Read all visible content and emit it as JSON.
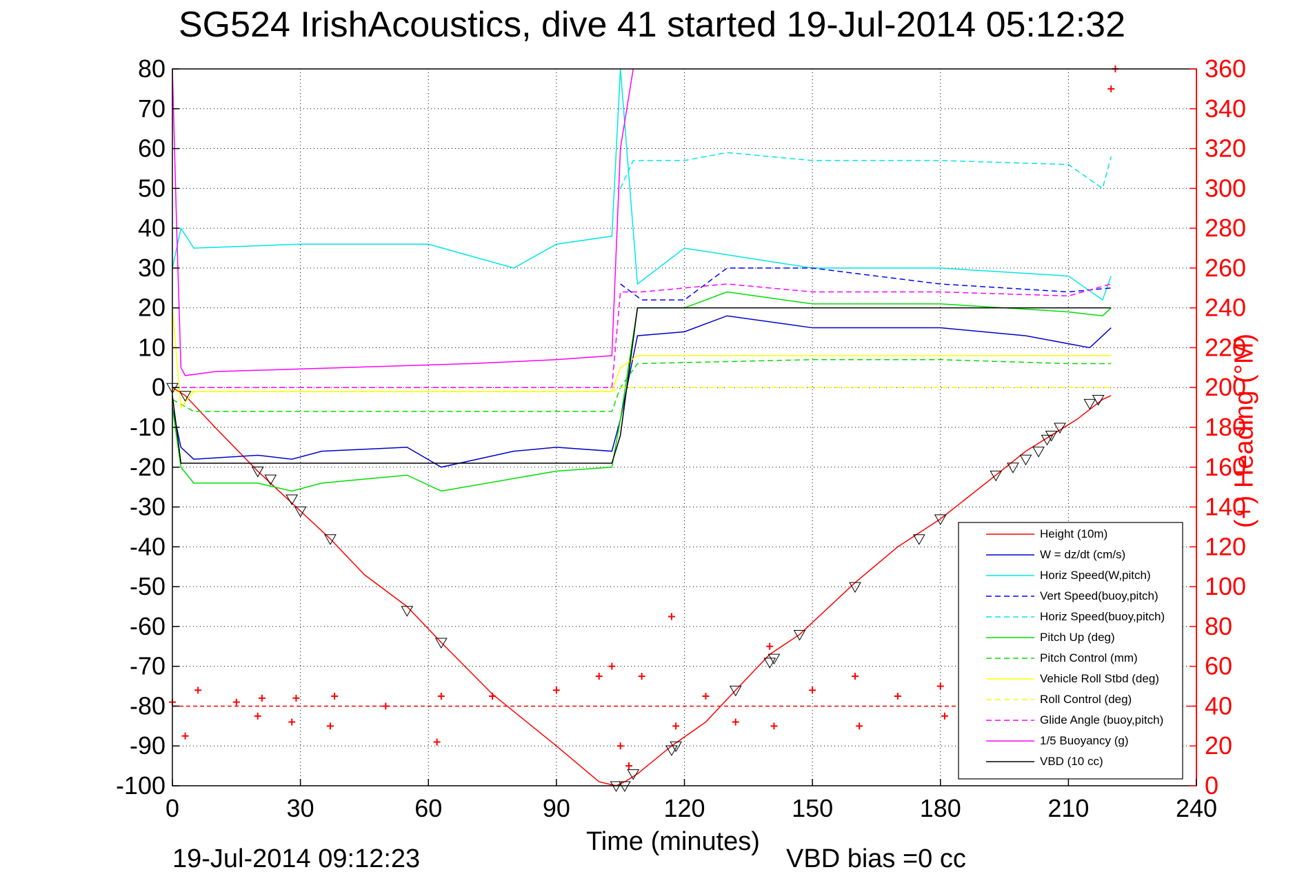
{
  "title": "SG524 IrishAcoustics, dive 41 started 19-Jul-2014 05:12:32",
  "footer": {
    "end_time": "19-Jul-2014 09:12:23",
    "vbd_bias": "VBD bias =0 cc"
  },
  "colors": {
    "height": "#ff0000",
    "w": "#0000cc",
    "horiz_speed": "#00e5e5",
    "pitch": "#00dd00",
    "roll": "#ffff00",
    "glide": "#ff00ff",
    "buoyancy": "#ff00ff",
    "vbd": "#000000",
    "heading": "#ff0000",
    "axes": "#000000"
  },
  "chart_data": {
    "type": "line",
    "title": "SG524 IrishAcoustics, dive 41 started 19-Jul-2014 05:12:32",
    "xlabel": "Time (minutes)",
    "ylabel": "",
    "y2label": "(+) Heading (°M)",
    "xlim": [
      0,
      240
    ],
    "ylim": [
      -100,
      80
    ],
    "y2lim": [
      0,
      360
    ],
    "xticks": [
      0,
      30,
      60,
      90,
      120,
      150,
      180,
      210,
      240
    ],
    "yticks": [
      80,
      70,
      60,
      50,
      40,
      30,
      20,
      10,
      0,
      -10,
      -20,
      -30,
      -40,
      -50,
      -60,
      -70,
      -80,
      -90,
      -100
    ],
    "y2ticks": [
      360,
      340,
      320,
      300,
      280,
      260,
      240,
      220,
      200,
      180,
      160,
      140,
      120,
      100,
      80,
      60,
      40,
      20,
      0
    ],
    "grid": true,
    "legend_position": "bottom-right",
    "series": [
      {
        "name": "Height (10m)",
        "color": "#ff0000",
        "style": "solid",
        "x": [
          0,
          3,
          10,
          20,
          28,
          37,
          45,
          55,
          63,
          75,
          90,
          100,
          104,
          106,
          109,
          117,
          125,
          132,
          140,
          147,
          160,
          170,
          180,
          193,
          200,
          206,
          212,
          218,
          220
        ],
        "y": [
          0,
          -2,
          -10,
          -21,
          -29,
          -38,
          -47,
          -55,
          -64,
          -77,
          -90,
          -99,
          -100,
          -99,
          -97,
          -90,
          -84,
          -76,
          -67,
          -62,
          -49,
          -40,
          -33,
          -22,
          -16,
          -12,
          -8,
          -3,
          -2
        ]
      },
      {
        "name": "W = dz/dt (cm/s)",
        "color": "#0000cc",
        "style": "solid",
        "x": [
          0,
          2,
          5,
          20,
          28,
          35,
          55,
          63,
          80,
          90,
          103,
          105,
          109,
          120,
          130,
          150,
          180,
          200,
          215,
          220
        ],
        "y": [
          -5,
          -15,
          -18,
          -17,
          -18,
          -16,
          -15,
          -20,
          -16,
          -15,
          -16,
          -8,
          13,
          14,
          18,
          15,
          15,
          13,
          10,
          15
        ]
      },
      {
        "name": "Horiz Speed(W,pitch)",
        "color": "#00e5e5",
        "style": "solid",
        "x": [
          0,
          2,
          5,
          30,
          60,
          80,
          90,
          103,
          105,
          109,
          120,
          150,
          180,
          210,
          218,
          220
        ],
        "y": [
          30,
          40,
          35,
          36,
          36,
          30,
          36,
          38,
          80,
          26,
          35,
          30,
          30,
          28,
          22,
          28
        ]
      },
      {
        "name": "Vert Speed(buoy,pitch)",
        "color": "#0000ff",
        "style": "dashed",
        "x": [
          105,
          110,
          120,
          130,
          150,
          180,
          210,
          220
        ],
        "y": [
          26,
          22,
          22,
          30,
          30,
          26,
          24,
          25
        ]
      },
      {
        "name": "Horiz Speed(buoy,pitch)",
        "color": "#00e5e5",
        "style": "dashed",
        "x": [
          105,
          108,
          120,
          130,
          150,
          180,
          210,
          218,
          220
        ],
        "y": [
          50,
          57,
          57,
          59,
          57,
          57,
          56,
          50,
          58
        ]
      },
      {
        "name": "Pitch Up (deg)",
        "color": "#00dd00",
        "style": "solid",
        "x": [
          0,
          2,
          5,
          20,
          28,
          35,
          55,
          63,
          90,
          103,
          105,
          109,
          120,
          130,
          150,
          180,
          210,
          218,
          220
        ],
        "y": [
          -5,
          -20,
          -24,
          -24,
          -26,
          -24,
          -22,
          -26,
          -21,
          -20,
          -8,
          20,
          20,
          24,
          21,
          21,
          19,
          18,
          20
        ]
      },
      {
        "name": "Pitch Control (mm)",
        "color": "#00dd00",
        "style": "dashed",
        "x": [
          0,
          5,
          20,
          40,
          60,
          90,
          103,
          105,
          109,
          150,
          180,
          210,
          220
        ],
        "y": [
          -3,
          -6,
          -6,
          -6,
          -6,
          -6,
          -6,
          0,
          6,
          7,
          7,
          6,
          6
        ]
      },
      {
        "name": "Vehicle Roll Stbd (deg)",
        "color": "#ffff00",
        "style": "solid",
        "x": [
          0,
          2,
          5,
          30,
          60,
          90,
          103,
          105,
          109,
          150,
          180,
          210,
          220
        ],
        "y": [
          20,
          -5,
          -1,
          -1,
          -1,
          -1,
          -1,
          5,
          8,
          8,
          8,
          8,
          8
        ]
      },
      {
        "name": "Roll Control (deg)",
        "color": "#ffff00",
        "style": "dashed",
        "x": [
          0,
          5,
          60,
          103,
          105,
          109,
          150,
          210,
          220
        ],
        "y": [
          -1,
          -1,
          -1,
          -1,
          0,
          0,
          0,
          0,
          0
        ]
      },
      {
        "name": "Glide Angle (buoy,pitch)",
        "color": "#ff00ff",
        "style": "dashed",
        "x": [
          0,
          5,
          60,
          103,
          105,
          110,
          130,
          150,
          180,
          210,
          220
        ],
        "y": [
          0,
          0,
          0,
          0,
          24,
          24,
          26,
          24,
          24,
          23,
          26
        ]
      },
      {
        "name": "1/5 Buoyancy (g)",
        "color": "#ff00ff",
        "style": "solid",
        "x": [
          0,
          1,
          2,
          3,
          10,
          40,
          70,
          90,
          103,
          105,
          108
        ],
        "y": [
          80,
          40,
          5,
          3,
          4,
          5,
          6,
          7,
          8,
          60,
          80
        ]
      },
      {
        "name": "VBD (10 cc)",
        "color": "#000000",
        "style": "solid",
        "x": [
          0,
          2,
          5,
          103,
          105,
          109,
          150,
          218,
          220
        ],
        "y": [
          -2,
          -19,
          -19,
          -19,
          -12,
          20,
          20,
          20,
          20
        ]
      }
    ],
    "heading": {
      "name": "Heading",
      "color": "#ff0000",
      "marker": "+",
      "x": [
        0,
        3,
        6,
        15,
        20,
        21,
        28,
        29,
        37,
        38,
        50,
        62,
        63,
        75,
        90,
        100,
        103,
        105,
        107,
        110,
        117,
        118,
        125,
        132,
        140,
        141,
        150,
        160,
        161,
        170,
        180,
        181,
        190,
        200,
        210,
        218,
        220,
        221
      ],
      "y": [
        42,
        25,
        48,
        42,
        35,
        44,
        32,
        44,
        30,
        45,
        40,
        22,
        45,
        45,
        48,
        55,
        60,
        20,
        10,
        55,
        85,
        30,
        45,
        32,
        70,
        30,
        48,
        55,
        30,
        45,
        50,
        35,
        40,
        42,
        45,
        46,
        350,
        360
      ]
    },
    "markers": {
      "name": "Triangles",
      "x": [
        0,
        3,
        20,
        23,
        28,
        30,
        37,
        55,
        63,
        104,
        106,
        108,
        117,
        118,
        132,
        140,
        141,
        147,
        160,
        175,
        180,
        193,
        197,
        200,
        203,
        205,
        206,
        208,
        215,
        217
      ],
      "y": [
        0,
        -2,
        -21,
        -23,
        -28,
        -31,
        -38,
        -56,
        -64,
        -100,
        -100,
        -97,
        -91,
        -90,
        -76,
        -69,
        -68,
        -62,
        -50,
        -38,
        -33,
        -22,
        -20,
        -18,
        -16,
        -13,
        -12,
        -10,
        -4,
        -3
      ]
    }
  }
}
